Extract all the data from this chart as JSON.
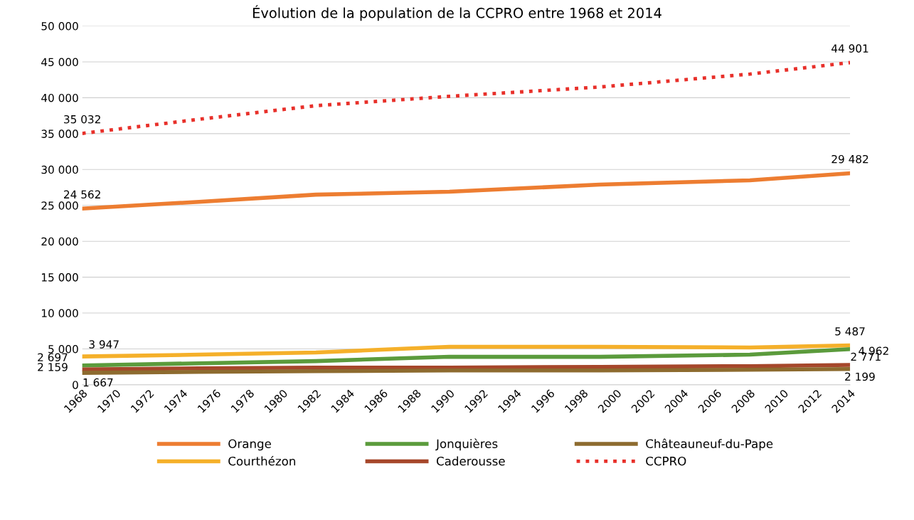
{
  "chart_data": {
    "type": "line",
    "title": "Évolution de la population de la CCPRO entre 1968 et 2014",
    "x": [
      1968,
      1975,
      1982,
      1990,
      1999,
      2008,
      2014
    ],
    "xlim": [
      1968,
      2014
    ],
    "xticks": [
      1968,
      1970,
      1972,
      1974,
      1976,
      1978,
      1980,
      1982,
      1984,
      1986,
      1988,
      1990,
      1992,
      1994,
      1996,
      1998,
      2000,
      2002,
      2004,
      2006,
      2008,
      2010,
      2012,
      2014
    ],
    "ylim": [
      0,
      50000
    ],
    "yticks": [
      {
        "value": 0,
        "label": "0"
      },
      {
        "value": 5000,
        "label": "5 000"
      },
      {
        "value": 10000,
        "label": "10 000"
      },
      {
        "value": 15000,
        "label": "15 000"
      },
      {
        "value": 20000,
        "label": "20 000"
      },
      {
        "value": 25000,
        "label": "25 000"
      },
      {
        "value": 30000,
        "label": "30 000"
      },
      {
        "value": 35000,
        "label": "35 000"
      },
      {
        "value": 40000,
        "label": "40 000"
      },
      {
        "value": 45000,
        "label": "45 000"
      },
      {
        "value": 50000,
        "label": "50 000"
      }
    ],
    "grid": "y",
    "legend": "bottom",
    "marker": "none",
    "series": [
      {
        "name": "Orange",
        "color": "#ed7d31",
        "line_style": "solid",
        "values": [
          24562,
          25500,
          26500,
          26900,
          27900,
          28500,
          29482
        ],
        "value_labels": [
          "24 562",
          null,
          null,
          null,
          null,
          null,
          "29 482"
        ]
      },
      {
        "name": "Courthézon",
        "color": "#f5b02a",
        "line_style": "solid",
        "values": [
          3947,
          4200,
          4500,
          5300,
          5300,
          5200,
          5487
        ],
        "value_labels": [
          "3 947",
          null,
          null,
          null,
          null,
          null,
          "5 487"
        ]
      },
      {
        "name": "Jonquières",
        "color": "#5b9b3c",
        "line_style": "solid",
        "values": [
          2697,
          3000,
          3300,
          3900,
          3900,
          4200,
          4962
        ],
        "value_labels": [
          "2 697",
          null,
          null,
          null,
          null,
          null,
          "4 962"
        ]
      },
      {
        "name": "Caderousse",
        "color": "#a6472b",
        "line_style": "solid",
        "values": [
          2159,
          2300,
          2400,
          2400,
          2500,
          2600,
          2771
        ],
        "value_labels": [
          "2 159",
          null,
          null,
          null,
          null,
          null,
          "2 771"
        ]
      },
      {
        "name": "Châteauneuf-du-Pape",
        "color": "#8d6b2f",
        "line_style": "solid",
        "values": [
          1667,
          1800,
          1900,
          2000,
          2000,
          2100,
          2199
        ],
        "value_labels": [
          "1 667",
          null,
          null,
          null,
          null,
          null,
          "2 199"
        ]
      },
      {
        "name": "CCPRO",
        "color": "#e8302a",
        "line_style": "dotted",
        "values": [
          35032,
          37000,
          38900,
          40200,
          41500,
          43300,
          44901
        ],
        "value_labels": [
          "35 032",
          null,
          null,
          null,
          null,
          null,
          "44 901"
        ]
      }
    ]
  }
}
